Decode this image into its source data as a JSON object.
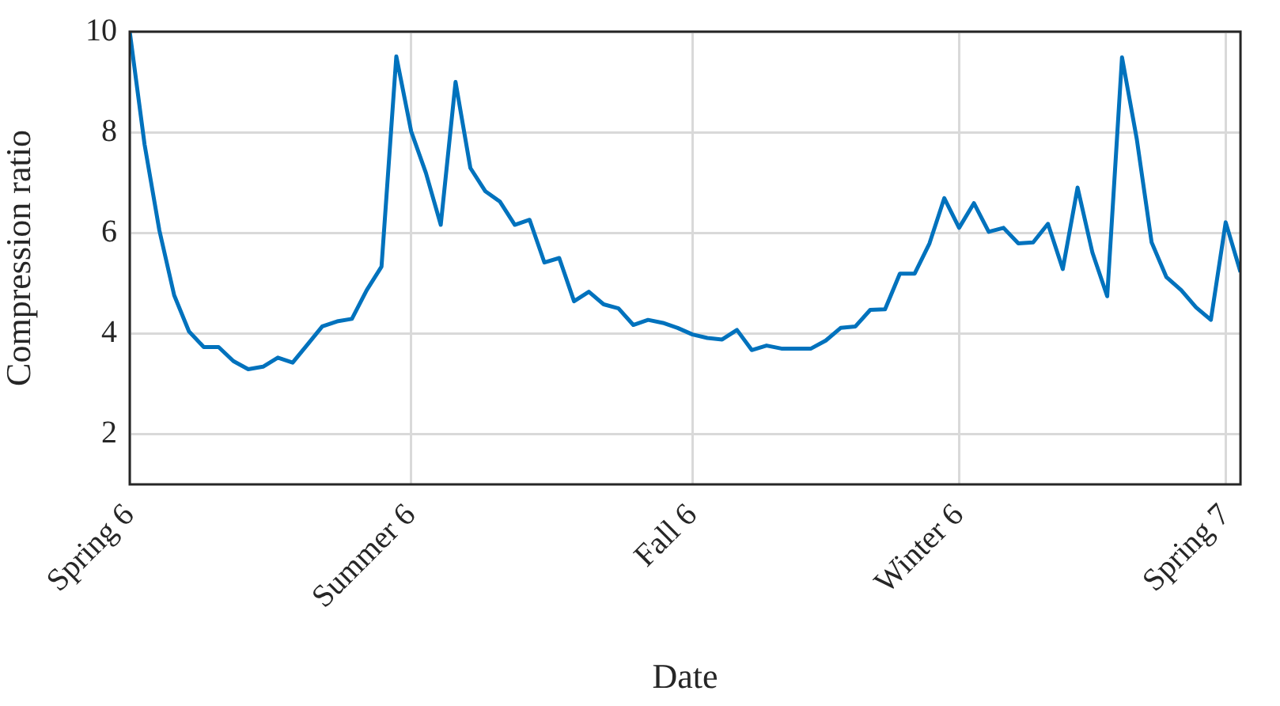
{
  "chart_data": {
    "type": "line",
    "xlabel": "Date",
    "ylabel": "Compression ratio",
    "categories": [
      "Spring 6",
      null,
      null,
      null,
      null,
      null,
      null,
      null,
      null,
      null,
      null,
      null,
      null,
      null,
      null,
      null,
      null,
      null,
      null,
      "Summer 6",
      null,
      null,
      null,
      null,
      null,
      null,
      null,
      null,
      null,
      null,
      null,
      null,
      null,
      null,
      null,
      null,
      null,
      null,
      "Fall 6",
      null,
      null,
      null,
      null,
      null,
      null,
      null,
      null,
      null,
      null,
      null,
      null,
      null,
      null,
      null,
      null,
      null,
      "Winter 6",
      null,
      null,
      null,
      null,
      null,
      null,
      null,
      null,
      null,
      null,
      null,
      null,
      null,
      null,
      null,
      null,
      null,
      "Spring 7",
      null
    ],
    "series": [
      {
        "color": "#0072bd",
        "values": [
          10,
          7.76,
          6.05,
          4.76,
          4.04,
          3.73,
          3.73,
          3.45,
          3.29,
          3.34,
          3.52,
          3.42,
          3.78,
          4.14,
          4.24,
          4.29,
          4.86,
          5.33,
          9.51,
          8.02,
          7.19,
          6.16,
          9.0,
          7.29,
          6.83,
          6.62,
          6.16,
          6.26,
          5.41,
          5.5,
          4.64,
          4.83,
          4.58,
          4.5,
          4.17,
          4.27,
          4.21,
          4.11,
          3.98,
          3.91,
          3.88,
          4.07,
          3.67,
          3.76,
          3.7,
          3.7,
          3.7,
          3.86,
          4.11,
          4.14,
          4.47,
          4.48,
          5.19,
          5.19,
          5.79,
          6.69,
          6.1,
          6.59,
          6.02,
          6.1,
          5.79,
          5.81,
          6.18,
          5.28,
          6.9,
          5.61,
          4.74,
          9.49,
          7.86,
          5.81,
          5.12,
          4.86,
          4.52,
          4.27,
          6.21,
          5.22
        ]
      }
    ],
    "ylim": [
      1,
      10
    ],
    "yticks": [
      2,
      4,
      6,
      8,
      10
    ],
    "grid": true,
    "legend": false,
    "line_style": "solid",
    "marker": "none"
  }
}
